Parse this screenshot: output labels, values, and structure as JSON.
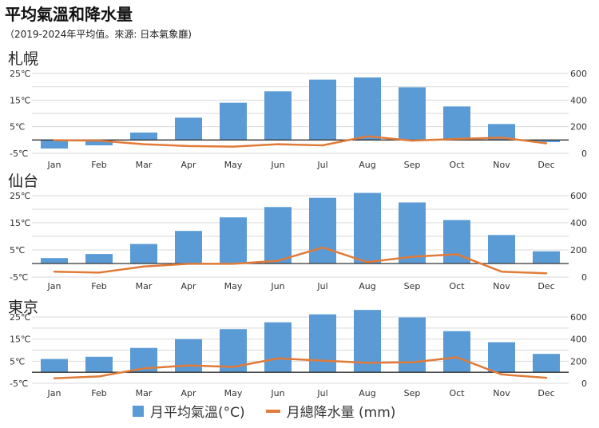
{
  "title": "平均氣溫和降水量",
  "subtitle": "（2019-2024年平均值。來源: 日本氣象廳)",
  "legend": {
    "temp_label": "月平均氣溫(°C)",
    "precip_label": "月總降水量 (mm)"
  },
  "colors": {
    "bar": "#5b9bd5",
    "line": "#e07b39",
    "grid": "#d9d9d9",
    "axis": "#333333"
  },
  "chart_data": [
    {
      "type": "bar",
      "title": "札幌",
      "categories": [
        "Jan",
        "Feb",
        "Mar",
        "Apr",
        "May",
        "Jun",
        "Jul",
        "Aug",
        "Sep",
        "Oct",
        "Nov",
        "Dec"
      ],
      "series": [
        {
          "name": "月平均氣溫(°C)",
          "type": "bar",
          "axis": "left",
          "values": [
            -3.2,
            -2.0,
            2.8,
            8.4,
            14.0,
            18.3,
            22.7,
            23.5,
            19.8,
            12.6,
            6.0,
            -0.8
          ]
        },
        {
          "name": "月總降水量 (mm)",
          "type": "line",
          "axis": "right",
          "values": [
            98,
            95,
            68,
            55,
            50,
            68,
            60,
            128,
            95,
            108,
            118,
            75
          ]
        }
      ],
      "y_left": {
        "min": -5,
        "max": 25,
        "ticks": [
          "25℃",
          "15℃",
          "5℃",
          "-5℃"
        ],
        "tick_values": [
          25,
          15,
          5,
          -5
        ]
      },
      "y_right": {
        "min": 0,
        "max": 600,
        "ticks": [
          "600",
          "400",
          "200",
          "0"
        ],
        "tick_values": [
          600,
          400,
          200,
          0
        ]
      }
    },
    {
      "type": "bar",
      "title": "仙台",
      "categories": [
        "Jan",
        "Feb",
        "Mar",
        "Apr",
        "May",
        "Jun",
        "Jul",
        "Aug",
        "Sep",
        "Oct",
        "Nov",
        "Dec"
      ],
      "series": [
        {
          "name": "月平均氣溫(°C)",
          "type": "bar",
          "axis": "left",
          "values": [
            2.0,
            3.5,
            7.2,
            12.0,
            17.0,
            20.8,
            24.2,
            26.0,
            22.5,
            16.0,
            10.5,
            4.5
          ]
        },
        {
          "name": "月總降水量 (mm)",
          "type": "line",
          "axis": "right",
          "values": [
            40,
            33,
            78,
            98,
            98,
            120,
            218,
            110,
            150,
            168,
            40,
            28
          ]
        }
      ],
      "y_left": {
        "min": -5,
        "max": 25,
        "ticks": [
          "25℃",
          "15℃",
          "5℃",
          "-5℃"
        ],
        "tick_values": [
          25,
          15,
          5,
          -5
        ]
      },
      "y_right": {
        "min": 0,
        "max": 600,
        "ticks": [
          "600",
          "400",
          "200",
          "0"
        ],
        "tick_values": [
          600,
          400,
          200,
          0
        ]
      }
    },
    {
      "type": "bar",
      "title": "東京",
      "categories": [
        "Jan",
        "Feb",
        "Mar",
        "Apr",
        "May",
        "Jun",
        "Jul",
        "Aug",
        "Sep",
        "Oct",
        "Nov",
        "Dec"
      ],
      "series": [
        {
          "name": "月平均氣溫(°C)",
          "type": "bar",
          "axis": "left",
          "values": [
            6.0,
            7.0,
            11.0,
            15.0,
            19.5,
            22.6,
            26.2,
            28.2,
            24.8,
            18.6,
            13.6,
            8.3
          ]
        },
        {
          "name": "月總降水量 (mm)",
          "type": "line",
          "axis": "right",
          "values": [
            45,
            62,
            135,
            162,
            148,
            225,
            205,
            185,
            190,
            235,
            80,
            50
          ]
        }
      ],
      "y_left": {
        "min": -5,
        "max": 25,
        "ticks": [
          "25℃",
          "15℃",
          "5℃",
          "-5℃"
        ],
        "tick_values": [
          25,
          15,
          5,
          -5
        ]
      },
      "y_right": {
        "min": 0,
        "max": 600,
        "ticks": [
          "600",
          "400",
          "200",
          "0"
        ],
        "tick_values": [
          600,
          400,
          200,
          0
        ]
      }
    }
  ]
}
